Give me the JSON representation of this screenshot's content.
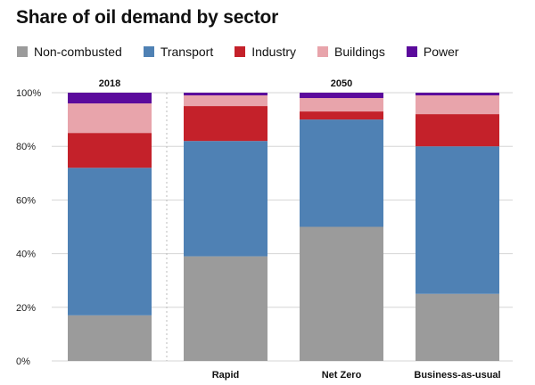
{
  "chart_data": {
    "type": "bar",
    "stacked": true,
    "title": "Share of oil demand by sector",
    "categories": [
      "",
      "Rapid",
      "Net Zero",
      "Business-as-usual"
    ],
    "groups": [
      {
        "label": "2018",
        "categories": [
          ""
        ]
      },
      {
        "label": "2050",
        "categories": [
          "Rapid",
          "Net Zero",
          "Business-as-usual"
        ]
      }
    ],
    "series": [
      {
        "name": "Non-combusted",
        "color": "#9b9b9b",
        "values": [
          17,
          39,
          50,
          25
        ]
      },
      {
        "name": "Transport",
        "color": "#4f81b4",
        "values": [
          55,
          43,
          40,
          55
        ]
      },
      {
        "name": "Industry",
        "color": "#c4212a",
        "values": [
          13,
          13,
          3,
          12
        ]
      },
      {
        "name": "Buildings",
        "color": "#e8a4ab",
        "values": [
          11,
          4,
          5,
          7
        ]
      },
      {
        "name": "Power",
        "color": "#5b0a9c",
        "values": [
          4,
          1,
          2,
          1
        ]
      }
    ],
    "yticks": [
      "0%",
      "20%",
      "40%",
      "60%",
      "80%",
      "100%"
    ],
    "ylim": [
      0,
      100
    ],
    "xlabel": "",
    "ylabel": "",
    "legend": "top",
    "grid": true
  }
}
